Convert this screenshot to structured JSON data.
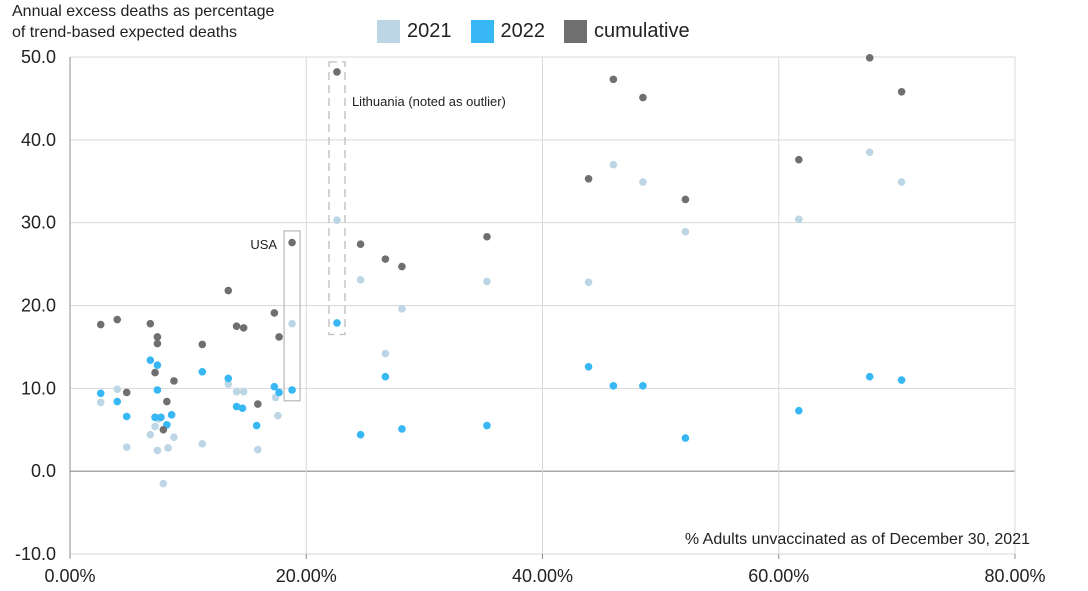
{
  "chart_data": {
    "type": "scatter",
    "ylabel_lines": [
      "Annual excess deaths as percentage",
      "of trend-based expected deaths"
    ],
    "xlabel": "% Adults unvaccinated as of December 30, 2021",
    "xlim": [
      0,
      80
    ],
    "ylim": [
      -10,
      50
    ],
    "x_ticks": [
      0,
      20,
      40,
      60,
      80
    ],
    "x_tick_labels": [
      "0.00%",
      "20.00%",
      "40.00%",
      "60.00%",
      "80.00%"
    ],
    "y_ticks": [
      -10,
      0,
      10,
      20,
      30,
      40,
      50
    ],
    "y_tick_labels": [
      "-10.0",
      "0.0",
      "10.0",
      "20.0",
      "30.0",
      "40.0",
      "50.0"
    ],
    "grid": true,
    "legend_position": "top",
    "series": [
      {
        "name": "2021",
        "color": "#bcd6e6",
        "points": [
          [
            2.6,
            8.3
          ],
          [
            4.0,
            9.9
          ],
          [
            4.8,
            2.9
          ],
          [
            6.8,
            4.4
          ],
          [
            7.2,
            6.5
          ],
          [
            7.2,
            5.4
          ],
          [
            7.4,
            2.5
          ],
          [
            7.5,
            6.3
          ],
          [
            7.9,
            -1.5
          ],
          [
            8.3,
            2.8
          ],
          [
            8.8,
            4.1
          ],
          [
            11.2,
            3.3
          ],
          [
            13.4,
            10.5
          ],
          [
            14.1,
            9.6
          ],
          [
            14.7,
            9.6
          ],
          [
            15.9,
            2.6
          ],
          [
            17.4,
            8.9
          ],
          [
            17.6,
            6.7
          ],
          [
            18.8,
            17.8
          ],
          [
            22.6,
            30.3
          ],
          [
            24.6,
            23.1
          ],
          [
            26.7,
            14.2
          ],
          [
            28.1,
            19.6
          ],
          [
            35.3,
            22.9
          ],
          [
            43.9,
            22.8
          ],
          [
            46.0,
            37.0
          ],
          [
            48.5,
            34.9
          ],
          [
            52.1,
            28.9
          ],
          [
            61.7,
            30.4
          ],
          [
            67.7,
            38.5
          ],
          [
            70.4,
            34.9
          ]
        ]
      },
      {
        "name": "2022",
        "color": "#37b7f4",
        "points": [
          [
            2.6,
            9.4
          ],
          [
            4.0,
            8.4
          ],
          [
            4.8,
            6.6
          ],
          [
            6.8,
            13.4
          ],
          [
            7.2,
            6.5
          ],
          [
            7.4,
            12.8
          ],
          [
            7.4,
            9.8
          ],
          [
            7.7,
            6.5
          ],
          [
            8.2,
            5.6
          ],
          [
            8.6,
            6.8
          ],
          [
            11.2,
            12.0
          ],
          [
            13.4,
            11.2
          ],
          [
            14.1,
            7.8
          ],
          [
            14.6,
            7.6
          ],
          [
            15.8,
            5.5
          ],
          [
            17.3,
            10.2
          ],
          [
            17.7,
            9.5
          ],
          [
            18.8,
            9.8
          ],
          [
            22.6,
            17.9
          ],
          [
            24.6,
            4.4
          ],
          [
            26.7,
            11.4
          ],
          [
            28.1,
            5.1
          ],
          [
            35.3,
            5.5
          ],
          [
            43.9,
            12.6
          ],
          [
            46.0,
            10.3
          ],
          [
            48.5,
            10.3
          ],
          [
            52.1,
            4.0
          ],
          [
            61.7,
            7.3
          ],
          [
            67.7,
            11.4
          ],
          [
            70.4,
            11.0
          ]
        ]
      },
      {
        "name": "cumulative",
        "color": "#6f6f6f",
        "points": [
          [
            2.6,
            17.7
          ],
          [
            4.0,
            18.3
          ],
          [
            4.8,
            9.5
          ],
          [
            6.8,
            17.8
          ],
          [
            7.2,
            11.9
          ],
          [
            7.4,
            16.2
          ],
          [
            7.4,
            15.4
          ],
          [
            7.9,
            5.0
          ],
          [
            8.2,
            8.4
          ],
          [
            8.8,
            10.9
          ],
          [
            11.2,
            15.3
          ],
          [
            13.4,
            21.8
          ],
          [
            14.1,
            17.5
          ],
          [
            14.7,
            17.3
          ],
          [
            15.9,
            8.1
          ],
          [
            17.3,
            19.1
          ],
          [
            17.7,
            16.2
          ],
          [
            18.8,
            27.6
          ],
          [
            22.6,
            48.2
          ],
          [
            24.6,
            27.4
          ],
          [
            26.7,
            25.6
          ],
          [
            28.1,
            24.7
          ],
          [
            35.3,
            28.3
          ],
          [
            43.9,
            35.3
          ],
          [
            46.0,
            47.3
          ],
          [
            48.5,
            45.1
          ],
          [
            52.1,
            32.8
          ],
          [
            61.7,
            37.6
          ],
          [
            67.7,
            49.9
          ],
          [
            70.4,
            45.8
          ]
        ]
      }
    ],
    "annotations": [
      {
        "label": "USA",
        "x": 18.8,
        "y_range": [
          8.5,
          29.0
        ],
        "style": "solid"
      },
      {
        "label": "Lithuania (noted as outlier)",
        "x": 22.6,
        "y_range": [
          16.5,
          49.4
        ],
        "style": "dashed"
      }
    ]
  }
}
